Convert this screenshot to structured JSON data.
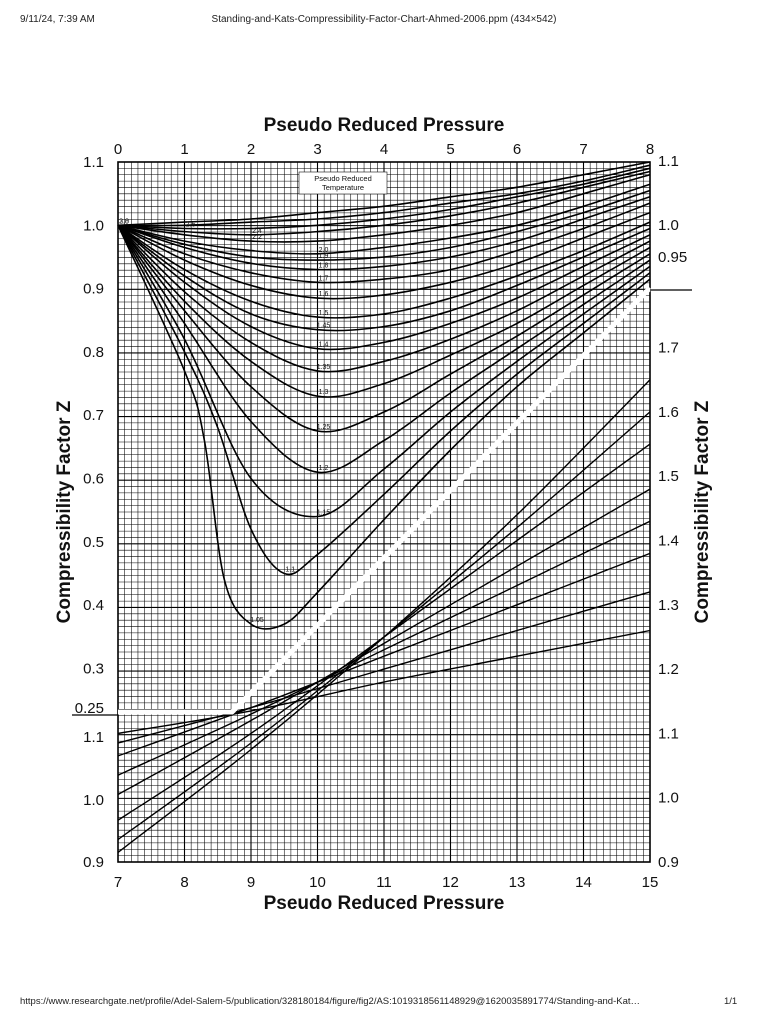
{
  "page": {
    "header_left": "9/11/24, 7:39 AM",
    "header_center": "Standing-and-Kats-Compressibility-Factor-Chart-Ahmed-2006.ppm (434×542)",
    "footer_url": "https://www.researchgate.net/profile/Adel-Salem-5/publication/328180184/figure/fig2/AS:1019318561148929@1620035891774/Standing-and-Kat…",
    "footer_page": "1/1"
  },
  "chart_data": {
    "type": "line",
    "title": "",
    "top_axis": {
      "label": "Pseudo Reduced Pressure",
      "ticks": [
        "0",
        "1",
        "2",
        "3",
        "4",
        "5",
        "6",
        "7",
        "8"
      ],
      "range": [
        0,
        8
      ]
    },
    "bottom_axis": {
      "label": "Pseudo Reduced Pressure",
      "ticks": [
        "7",
        "8",
        "9",
        "10",
        "11",
        "12",
        "13",
        "14",
        "15"
      ],
      "range": [
        7,
        15
      ]
    },
    "left_axis_upper": {
      "label": "Compressibility Factor Z",
      "ticks": [
        "1.1",
        "1.0",
        "0.9",
        "0.8",
        "0.7",
        "0.6",
        "0.5",
        "0.4",
        "0.3"
      ],
      "range": [
        0.25,
        1.1
      ]
    },
    "left_axis_lower": {
      "ticks": [
        "0.25",
        "1.1",
        "1.0",
        "0.9"
      ],
      "range": [
        0.9,
        1.15
      ]
    },
    "right_axis_upper": {
      "ticks": [
        "1.1",
        "1.0",
        "0.95"
      ],
      "range": [
        0.95,
        1.1
      ]
    },
    "right_axis_lower": {
      "label": "Compressibility Factor Z",
      "ticks": [
        "1.7",
        "1.6",
        "1.5",
        "1.4",
        "1.3",
        "1.2",
        "1.1",
        "1.0",
        "0.9"
      ],
      "range": [
        0.9,
        1.7
      ]
    },
    "legend_title": [
      "Pseudo Reduced",
      "Temperature"
    ],
    "grid": true,
    "series": [
      {
        "name": "3.0",
        "x": [
          0,
          1,
          2,
          3,
          4,
          5,
          6,
          7,
          8
        ],
        "y": [
          1.0,
          1.005,
          1.01,
          1.02,
          1.03,
          1.045,
          1.06,
          1.08,
          1.1
        ]
      },
      {
        "name": "2.8",
        "x": [
          0,
          1,
          2,
          3,
          4,
          5,
          6,
          7,
          8
        ],
        "y": [
          1.0,
          1.0,
          1.005,
          1.01,
          1.02,
          1.035,
          1.05,
          1.07,
          1.095
        ]
      },
      {
        "name": "2.6",
        "x": [
          0,
          1,
          2,
          3,
          4,
          5,
          6,
          7,
          8
        ],
        "y": [
          1.0,
          0.995,
          0.995,
          1.0,
          1.01,
          1.025,
          1.045,
          1.065,
          1.09
        ]
      },
      {
        "name": "2.4",
        "x": [
          0,
          1,
          2,
          3,
          4,
          5,
          6,
          7,
          8
        ],
        "y": [
          1.0,
          0.99,
          0.985,
          0.99,
          1.0,
          1.015,
          1.035,
          1.06,
          1.085
        ]
      },
      {
        "name": "2.2",
        "x": [
          0,
          1,
          2,
          3,
          4,
          5,
          6,
          7,
          8
        ],
        "y": [
          1.0,
          0.985,
          0.975,
          0.975,
          0.985,
          1.0,
          1.02,
          1.05,
          1.08
        ]
      },
      {
        "name": "2.0",
        "x": [
          0,
          1,
          2,
          3,
          4,
          5,
          6,
          7,
          8
        ],
        "y": [
          1.0,
          0.975,
          0.96,
          0.955,
          0.965,
          0.98,
          1.0,
          1.03,
          1.065
        ]
      },
      {
        "name": "1.9",
        "x": [
          0,
          1,
          2,
          3,
          4,
          5,
          6,
          7,
          8
        ],
        "y": [
          1.0,
          0.97,
          0.95,
          0.945,
          0.95,
          0.965,
          0.99,
          1.02,
          1.055
        ]
      },
      {
        "name": "1.8",
        "x": [
          0,
          1,
          2,
          3,
          4,
          5,
          6,
          7,
          8
        ],
        "y": [
          1.0,
          0.965,
          0.94,
          0.93,
          0.935,
          0.95,
          0.975,
          1.01,
          1.045
        ]
      },
      {
        "name": "1.7",
        "x": [
          0,
          1,
          2,
          3,
          4,
          5,
          6,
          7,
          8
        ],
        "y": [
          1.0,
          0.955,
          0.925,
          0.91,
          0.915,
          0.93,
          0.96,
          0.995,
          1.035
        ]
      },
      {
        "name": "1.6",
        "x": [
          0,
          1,
          2,
          3,
          4,
          5,
          6,
          7,
          8
        ],
        "y": [
          1.0,
          0.945,
          0.905,
          0.885,
          0.89,
          0.91,
          0.94,
          0.98,
          1.02
        ]
      },
      {
        "name": "1.5",
        "x": [
          0,
          1,
          2,
          3,
          4,
          5,
          6,
          7,
          8
        ],
        "y": [
          1.0,
          0.93,
          0.88,
          0.855,
          0.86,
          0.885,
          0.92,
          0.96,
          1.005
        ]
      },
      {
        "name": "1.45",
        "x": [
          0,
          1,
          2,
          3,
          4,
          5,
          6,
          7,
          8
        ],
        "y": [
          1.0,
          0.92,
          0.86,
          0.835,
          0.84,
          0.865,
          0.905,
          0.95,
          0.995
        ]
      },
      {
        "name": "1.4",
        "x": [
          0,
          1,
          2,
          3,
          4,
          5,
          6,
          7,
          8
        ],
        "y": [
          1.0,
          0.91,
          0.84,
          0.805,
          0.815,
          0.845,
          0.885,
          0.935,
          0.985
        ]
      },
      {
        "name": "1.35",
        "x": [
          0,
          1,
          2,
          3,
          4,
          5,
          6,
          7,
          8
        ],
        "y": [
          1.0,
          0.895,
          0.815,
          0.77,
          0.785,
          0.82,
          0.865,
          0.92,
          0.975
        ]
      },
      {
        "name": "1.3",
        "x": [
          0,
          1,
          2,
          3,
          4,
          5,
          6,
          7,
          8
        ],
        "y": [
          1.0,
          0.88,
          0.785,
          0.73,
          0.75,
          0.795,
          0.845,
          0.905,
          0.965
        ]
      },
      {
        "name": "1.25",
        "x": [
          0,
          1,
          2,
          3,
          4,
          5,
          6,
          7,
          8
        ],
        "y": [
          1.0,
          0.865,
          0.745,
          0.675,
          0.705,
          0.765,
          0.825,
          0.89,
          0.955
        ]
      },
      {
        "name": "1.2",
        "x": [
          0,
          1,
          2,
          3,
          4,
          5,
          6,
          7,
          8
        ],
        "y": [
          1.0,
          0.845,
          0.69,
          0.61,
          0.66,
          0.735,
          0.805,
          0.875,
          0.945
        ]
      },
      {
        "name": "1.15",
        "x": [
          0,
          1,
          2,
          3,
          4,
          5,
          6,
          7,
          8
        ],
        "y": [
          1.0,
          0.82,
          0.6,
          0.54,
          0.615,
          0.705,
          0.785,
          0.86,
          0.935
        ]
      },
      {
        "name": "1.1",
        "x": [
          0,
          1,
          1.5,
          2,
          2.5,
          3,
          4,
          5,
          6,
          7,
          8
        ],
        "y": [
          1.0,
          0.8,
          0.68,
          0.52,
          0.45,
          0.48,
          0.575,
          0.675,
          0.765,
          0.845,
          0.925
        ]
      },
      {
        "name": "1.05",
        "x": [
          0,
          1,
          1.3,
          1.6,
          2,
          2.5,
          3,
          4,
          5,
          6,
          7,
          8
        ],
        "y": [
          1.0,
          0.77,
          0.66,
          0.44,
          0.37,
          0.37,
          0.42,
          0.535,
          0.645,
          0.745,
          0.83,
          0.915
        ]
      }
    ],
    "series_lower": [
      {
        "name": "3.0",
        "x": [
          7,
          9,
          11,
          13,
          15
        ],
        "y": [
          1.1,
          1.135,
          1.18,
          1.22,
          1.26
        ]
      },
      {
        "name": "2.4",
        "x": [
          7,
          9,
          11,
          13,
          15
        ],
        "y": [
          1.085,
          1.14,
          1.2,
          1.26,
          1.32
        ]
      },
      {
        "name": "2.0",
        "x": [
          7,
          9,
          11,
          13,
          15
        ],
        "y": [
          1.065,
          1.14,
          1.22,
          1.3,
          1.38
        ]
      },
      {
        "name": "1.7",
        "x": [
          7,
          9,
          11,
          13,
          15
        ],
        "y": [
          1.035,
          1.13,
          1.23,
          1.33,
          1.43
        ]
      },
      {
        "name": "1.5",
        "x": [
          7,
          9,
          11,
          13,
          15
        ],
        "y": [
          1.005,
          1.12,
          1.24,
          1.36,
          1.48
        ]
      },
      {
        "name": "1.3",
        "x": [
          7,
          9,
          11,
          13,
          15
        ],
        "y": [
          0.965,
          1.1,
          1.25,
          1.4,
          1.55
        ]
      },
      {
        "name": "1.15",
        "x": [
          7,
          9,
          11,
          13,
          15
        ],
        "y": [
          0.935,
          1.085,
          1.25,
          1.42,
          1.6
        ]
      },
      {
        "name": "1.05",
        "x": [
          7,
          9,
          11,
          13,
          15
        ],
        "y": [
          0.915,
          1.075,
          1.25,
          1.44,
          1.65
        ]
      }
    ]
  }
}
